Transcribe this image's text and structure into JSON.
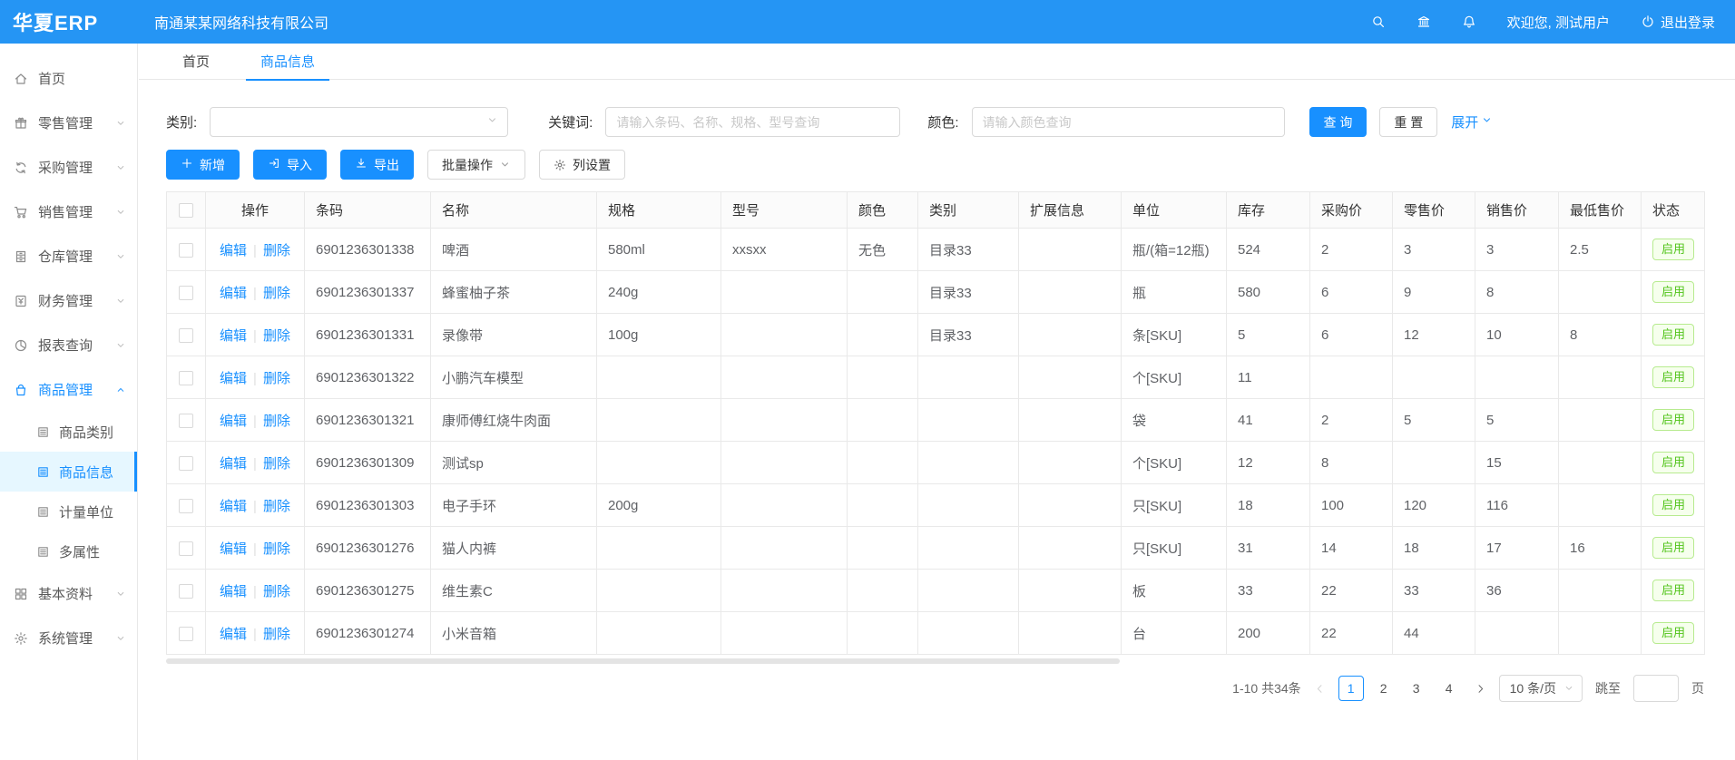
{
  "header": {
    "logo": "华夏ERP",
    "company": "南通某某网络科技有限公司",
    "welcome": "欢迎您, 测试用户",
    "logout": "退出登录",
    "icons": [
      "search-icon",
      "bank-icon",
      "bell-icon",
      "power-icon"
    ]
  },
  "sidebar": {
    "items": [
      {
        "label": "首页",
        "icon": "home-icon",
        "expandable": false
      },
      {
        "label": "零售管理",
        "icon": "retail-icon",
        "expandable": true
      },
      {
        "label": "采购管理",
        "icon": "purchase-icon",
        "expandable": true
      },
      {
        "label": "销售管理",
        "icon": "sales-icon",
        "expandable": true
      },
      {
        "label": "仓库管理",
        "icon": "warehouse-icon",
        "expandable": true
      },
      {
        "label": "财务管理",
        "icon": "finance-icon",
        "expandable": true
      },
      {
        "label": "报表查询",
        "icon": "report-icon",
        "expandable": true
      },
      {
        "label": "商品管理",
        "icon": "product-icon",
        "expandable": true,
        "open": true,
        "active": true,
        "children": [
          {
            "label": "商品类别",
            "icon": "doc-icon",
            "selected": false
          },
          {
            "label": "商品信息",
            "icon": "doc-icon",
            "selected": true
          },
          {
            "label": "计量单位",
            "icon": "doc-icon",
            "selected": false
          },
          {
            "label": "多属性",
            "icon": "doc-icon",
            "selected": false
          }
        ]
      },
      {
        "label": "基本资料",
        "icon": "grid-icon",
        "expandable": true
      },
      {
        "label": "系统管理",
        "icon": "gear-icon",
        "expandable": true
      }
    ]
  },
  "tabs": [
    {
      "label": "首页",
      "active": false
    },
    {
      "label": "商品信息",
      "active": true
    }
  ],
  "filters": {
    "category_label": "类别:",
    "keyword_label": "关键词:",
    "keyword_placeholder": "请输入条码、名称、规格、型号查询",
    "color_label": "颜色:",
    "color_placeholder": "请输入颜色查询",
    "search_button": "查 询",
    "reset_button": "重 置",
    "expand_link": "展开"
  },
  "toolbar": {
    "add": "新增",
    "import": "导入",
    "export": "导出",
    "batch": "批量操作",
    "columns": "列设置"
  },
  "table": {
    "headers": [
      "操作",
      "条码",
      "名称",
      "规格",
      "型号",
      "颜色",
      "类别",
      "扩展信息",
      "单位",
      "库存",
      "采购价",
      "零售价",
      "销售价",
      "最低售价",
      "状态"
    ],
    "edit_label": "编辑",
    "delete_label": "删除",
    "rows": [
      {
        "barcode": "6901236301338",
        "name": "啤酒",
        "spec": "580ml",
        "model": "xxsxx",
        "color": "无色",
        "category": "目录33",
        "ext": "",
        "unit": "瓶/(箱=12瓶)",
        "stock": "524",
        "purchase": "2",
        "retail": "3",
        "sale": "3",
        "min": "2.5",
        "status": "启用"
      },
      {
        "barcode": "6901236301337",
        "name": "蜂蜜柚子茶",
        "spec": "240g",
        "model": "",
        "color": "",
        "category": "目录33",
        "ext": "",
        "unit": "瓶",
        "stock": "580",
        "purchase": "6",
        "retail": "9",
        "sale": "8",
        "min": "",
        "status": "启用"
      },
      {
        "barcode": "6901236301331",
        "name": "录像带",
        "spec": "100g",
        "model": "",
        "color": "",
        "category": "目录33",
        "ext": "",
        "unit": "条[SKU]",
        "stock": "5",
        "purchase": "6",
        "retail": "12",
        "sale": "10",
        "min": "8",
        "status": "启用"
      },
      {
        "barcode": "6901236301322",
        "name": "小鹏汽车模型",
        "spec": "",
        "model": "",
        "color": "",
        "category": "",
        "ext": "",
        "unit": "个[SKU]",
        "stock": "11",
        "purchase": "",
        "retail": "",
        "sale": "",
        "min": "",
        "status": "启用"
      },
      {
        "barcode": "6901236301321",
        "name": "康师傅红烧牛肉面",
        "spec": "",
        "model": "",
        "color": "",
        "category": "",
        "ext": "",
        "unit": "袋",
        "stock": "41",
        "purchase": "2",
        "retail": "5",
        "sale": "5",
        "min": "",
        "status": "启用"
      },
      {
        "barcode": "6901236301309",
        "name": "测试sp",
        "spec": "",
        "model": "",
        "color": "",
        "category": "",
        "ext": "",
        "unit": "个[SKU]",
        "stock": "12",
        "purchase": "8",
        "retail": "",
        "sale": "15",
        "min": "",
        "status": "启用"
      },
      {
        "barcode": "6901236301303",
        "name": "电子手环",
        "spec": "200g",
        "model": "",
        "color": "",
        "category": "",
        "ext": "",
        "unit": "只[SKU]",
        "stock": "18",
        "purchase": "100",
        "retail": "120",
        "sale": "116",
        "min": "",
        "status": "启用"
      },
      {
        "barcode": "6901236301276",
        "name": "猫人内裤",
        "spec": "",
        "model": "",
        "color": "",
        "category": "",
        "ext": "",
        "unit": "只[SKU]",
        "stock": "31",
        "purchase": "14",
        "retail": "18",
        "sale": "17",
        "min": "16",
        "status": "启用"
      },
      {
        "barcode": "6901236301275",
        "name": "维生素C",
        "spec": "",
        "model": "",
        "color": "",
        "category": "",
        "ext": "",
        "unit": "板",
        "stock": "33",
        "purchase": "22",
        "retail": "33",
        "sale": "36",
        "min": "",
        "status": "启用"
      },
      {
        "barcode": "6901236301274",
        "name": "小米音箱",
        "spec": "",
        "model": "",
        "color": "",
        "category": "",
        "ext": "",
        "unit": "台",
        "stock": "200",
        "purchase": "22",
        "retail": "44",
        "sale": "",
        "min": "",
        "status": "启用"
      }
    ]
  },
  "pagination": {
    "total": "1-10 共34条",
    "pages": [
      "1",
      "2",
      "3",
      "4"
    ],
    "current": "1",
    "page_size": "10 条/页",
    "jump_label": "跳至",
    "jump_suffix": "页"
  },
  "colors": {
    "header_blue": "#2595f4",
    "accent": "#1890ff",
    "success_green": "#52c41a"
  }
}
